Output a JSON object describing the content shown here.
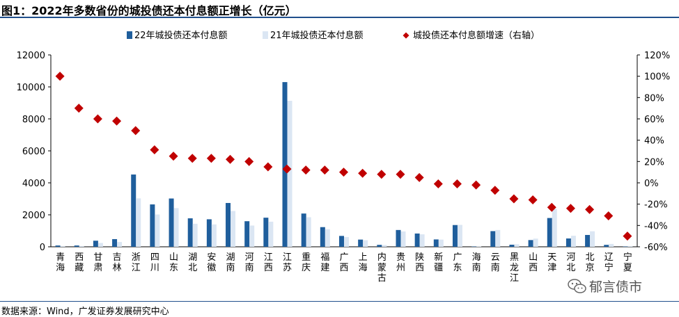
{
  "title": "图1：2022年多数省份的城投债还本付息额正增长（亿元）",
  "source": "数据来源：Wind，广发证券发展研究中心",
  "watermark": "郁言债市",
  "colors": {
    "bar2022": "#1f5e9c",
    "bar2021": "#dbe6f3",
    "growth": "#c00000",
    "rule": "#1f4e8c"
  },
  "chart_data": {
    "type": "bar",
    "categories": [
      "青海",
      "西藏",
      "甘肃",
      "吉林",
      "浙江",
      "四川",
      "山东",
      "湖北",
      "安徽",
      "湖南",
      "河南",
      "江西",
      "江苏",
      "重庆",
      "福建",
      "广西",
      "上海",
      "内蒙古",
      "贵州",
      "陕西",
      "新疆",
      "广东",
      "海南",
      "云南",
      "黑龙江",
      "山西",
      "天津",
      "河北",
      "北京",
      "辽宁",
      "宁夏"
    ],
    "series": [
      {
        "name": "22年城投债还本付息额",
        "axis": "left",
        "values": [
          80,
          80,
          380,
          480,
          4520,
          2650,
          3020,
          1780,
          1720,
          2740,
          1600,
          1820,
          10300,
          2080,
          1230,
          680,
          450,
          120,
          1050,
          830,
          460,
          1360,
          20,
          980,
          130,
          420,
          1800,
          520,
          740,
          120,
          20
        ]
      },
      {
        "name": "21年城投债还本付息额",
        "axis": "left",
        "values": [
          40,
          50,
          240,
          300,
          3030,
          2020,
          2420,
          1440,
          1400,
          2240,
          1330,
          1570,
          9130,
          1850,
          1100,
          610,
          410,
          110,
          960,
          780,
          450,
          1370,
          20,
          1050,
          160,
          510,
          2370,
          690,
          970,
          180,
          40
        ]
      },
      {
        "name": "城投债还本付息额增速（右轴）",
        "axis": "right",
        "kind": "scatter",
        "values": [
          1.0,
          0.7,
          0.6,
          0.58,
          0.49,
          0.31,
          0.25,
          0.23,
          0.23,
          0.22,
          0.2,
          0.15,
          0.13,
          0.12,
          0.12,
          0.1,
          0.09,
          0.08,
          0.08,
          0.05,
          -0.01,
          -0.01,
          -0.02,
          -0.07,
          -0.15,
          -0.16,
          -0.23,
          -0.24,
          -0.25,
          -0.31,
          -0.5
        ]
      }
    ],
    "y_left": {
      "min": 0,
      "max": 12000,
      "ticks": [
        "0",
        "2000",
        "4000",
        "6000",
        "8000",
        "10000",
        "12000"
      ]
    },
    "y_right": {
      "min": -0.6,
      "max": 1.2,
      "ticks": [
        "-60%",
        "-40%",
        "-20%",
        "0%",
        "20%",
        "40%",
        "60%",
        "80%",
        "100%",
        "120%"
      ]
    },
    "legend_position": "top",
    "grid": false
  }
}
